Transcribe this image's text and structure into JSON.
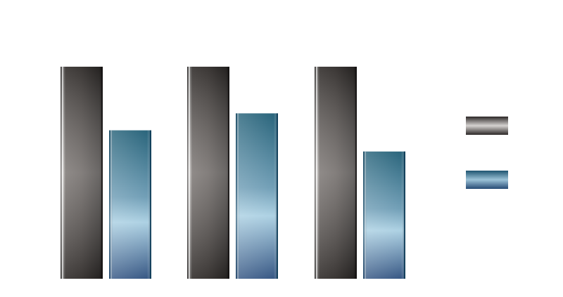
{
  "chart_data": {
    "type": "bar",
    "title": "",
    "xlabel": "",
    "ylabel": "",
    "categories": [
      "",
      "",
      ""
    ],
    "series": [
      {
        "values": [
          100,
          100,
          100
        ],
        "color": "#5f5a57"
      },
      {
        "values": [
          70,
          78,
          60
        ],
        "color": "#5e90ad"
      }
    ],
    "ylim": [
      0,
      100
    ],
    "grid": false,
    "legend": "right"
  }
}
